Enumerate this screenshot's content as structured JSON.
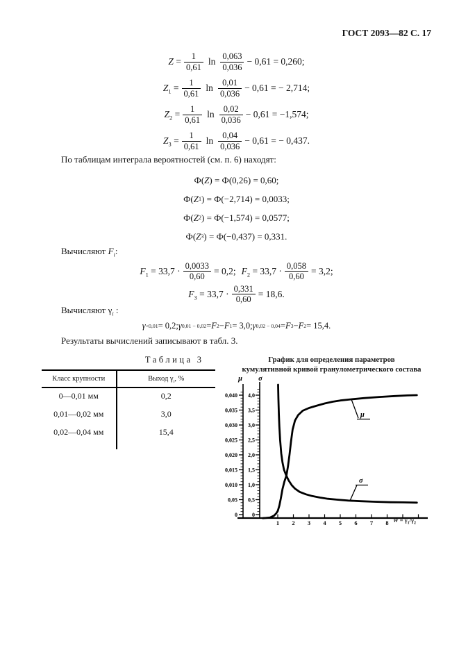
{
  "page": {
    "header": "ГОСТ 2093—82 С. 17"
  },
  "paragraphs": {
    "p1": [
      {
        "t": "По таблицам интеграла вероятностей (см. п. 6) находят:"
      }
    ],
    "p2": [
      {
        "t": "Вычисляют "
      },
      {
        "t": "F",
        "i": 1
      },
      {
        "t": "i",
        "sub": 1,
        "i": 1
      },
      {
        "t": ":"
      }
    ],
    "p3": [
      {
        "t": "Вычисляют γ"
      },
      {
        "t": "i",
        "sub": 1,
        "i": 1
      },
      {
        "t": " :"
      }
    ],
    "p4": [
      {
        "t": "Результаты вычислений записывают в табл. 3."
      }
    ]
  },
  "math": {
    "z": [
      {
        "lhs": [
          {
            "t": "Z",
            "i": 1
          },
          {
            "t": " = "
          }
        ],
        "f1n": "1",
        "f1d": "0,61",
        "op": "ln",
        "f2n": "0,063",
        "f2d": "0,036",
        "tail": [
          {
            "t": " − 0,61 = 0,260;"
          }
        ]
      },
      {
        "lhs": [
          {
            "t": "Z",
            "i": 1
          },
          {
            "t": "1",
            "sub": 1
          },
          {
            "t": " = "
          }
        ],
        "f1n": "1",
        "f1d": "0,61",
        "op": "ln",
        "f2n": "0,01",
        "f2d": "0,036",
        "tail": [
          {
            "t": " − 0,61 = − 2,714;"
          }
        ]
      },
      {
        "lhs": [
          {
            "t": "Z",
            "i": 1
          },
          {
            "t": "2",
            "sub": 1
          },
          {
            "t": " = "
          }
        ],
        "f1n": "1",
        "f1d": "0,61",
        "op": "ln",
        "f2n": "0,02",
        "f2d": "0,036",
        "tail": [
          {
            "t": " − 0,61 = −1,574;"
          }
        ]
      },
      {
        "lhs": [
          {
            "t": "Z",
            "i": 1
          },
          {
            "t": "3",
            "sub": 1
          },
          {
            "t": " = "
          }
        ],
        "f1n": "1",
        "f1d": "0,61",
        "op": "ln",
        "f2n": "0,04",
        "f2d": "0,036",
        "tail": [
          {
            "t": " − 0,61 = − 0,437."
          }
        ]
      }
    ],
    "phi": [
      [
        {
          "t": "Ф("
        },
        {
          "t": "Z",
          "i": 1
        },
        {
          "t": ") = Ф(0,26) = 0,60;"
        }
      ],
      [
        {
          "t": "Ф("
        },
        {
          "t": "Z",
          "i": 1
        },
        {
          "t": "1",
          "sub": 1
        },
        {
          "t": ") = Ф(−2,714) = 0,0033;"
        }
      ],
      [
        {
          "t": "Ф("
        },
        {
          "t": "Z",
          "i": 1
        },
        {
          "t": "2",
          "sub": 1
        },
        {
          "t": ") = Ф(−1,574) = 0,0577;"
        }
      ],
      [
        {
          "t": "Ф("
        },
        {
          "t": "Z",
          "i": 1
        },
        {
          "t": "3",
          "sub": 1
        },
        {
          "t": ") = Ф(−0,437) = 0,331."
        }
      ]
    ],
    "f": [
      {
        "lhs": [
          {
            "t": "F",
            "i": 1
          },
          {
            "t": "1",
            "sub": 1
          },
          {
            "t": " = 33,7 · "
          }
        ],
        "fn": "0,0033",
        "fd": "0,60",
        "tail": [
          {
            "t": " = 0,2; "
          }
        ]
      },
      {
        "lhs": [
          {
            "t": "F",
            "i": 1
          },
          {
            "t": "2",
            "sub": 1
          },
          {
            "t": " = 33,7 · "
          }
        ],
        "fn": "0,058",
        "fd": "0,60",
        "tail": [
          {
            "t": " = 3,2;"
          }
        ]
      },
      {
        "lhs": [
          {
            "t": "F",
            "i": 1
          },
          {
            "t": "3",
            "sub": 1
          },
          {
            "t": " = 33,7 · "
          }
        ],
        "fn": "0,331",
        "fd": "0,60",
        "tail": [
          {
            "t": " = 18,6."
          }
        ]
      }
    ],
    "gamma": [
      {
        "t": "γ",
        "i": 1
      },
      {
        "t": "<0,01",
        "sub": 1
      },
      {
        "t": " = 0,2;  "
      },
      {
        "t": "γ",
        "i": 1
      },
      {
        "t": "0,01 − 0,02",
        "sub": 1
      },
      {
        "t": " = "
      },
      {
        "t": "F",
        "i": 1
      },
      {
        "t": "2",
        "sub": 1
      },
      {
        "t": " − "
      },
      {
        "t": "F",
        "i": 1
      },
      {
        "t": "1",
        "sub": 1
      },
      {
        "t": " = 3,0;  "
      },
      {
        "t": "γ",
        "i": 1
      },
      {
        "t": "0,02 − 0,04",
        "sub": 1
      },
      {
        "t": " = "
      },
      {
        "t": "F",
        "i": 1
      },
      {
        "t": "3",
        "sub": 1
      },
      {
        "t": " − "
      },
      {
        "t": "F",
        "i": 1
      },
      {
        "t": "2",
        "sub": 1
      },
      {
        "t": " = 15,4."
      }
    ]
  },
  "table": {
    "caption_word": "Таблица",
    "caption_num": "3",
    "col1_header": "Класс крупности",
    "col2_header": [
      {
        "t": "Выход γ"
      },
      {
        "t": "i",
        "sub": 1,
        "i": 1
      },
      {
        "t": ", %"
      }
    ],
    "rows": [
      [
        "0—0,01 мм",
        "0,2"
      ],
      [
        "0,01—0,02 мм",
        "3,0"
      ],
      [
        "0,02—0,04 мм",
        "15,4"
      ]
    ]
  },
  "chart": {
    "title_line1": "График для определения параметров",
    "title_line2": "кумулятивной кривой гранулометрического состава",
    "x_title": [
      {
        "t": "W",
        "i": 1
      },
      {
        "t": " = γ"
      },
      {
        "t": "1",
        "sub": 1
      },
      {
        "t": "/γ"
      },
      {
        "t": "2",
        "sub": 1
      }
    ]
  },
  "chart_data": {
    "type": "line",
    "title": "График для определения параметров кумулятивной кривой гранулометрического состава",
    "grid": false,
    "x_axis": {
      "title": "W = γ1/γ2",
      "ticks": [
        1,
        2,
        3,
        4,
        5,
        6,
        7,
        8
      ],
      "range": [
        0,
        10.4
      ]
    },
    "y_axes": [
      {
        "name": "μ",
        "labels": [
          "0",
          "0,05",
          "0,010",
          "0,015",
          "0,020",
          "0,025",
          "0,030",
          "0,035",
          "0,040"
        ],
        "label_step": 0.005,
        "range": [
          0,
          0.0415
        ]
      },
      {
        "name": "σ",
        "labels": [
          "0",
          "0,5",
          "1,0",
          "1,5",
          "2,0",
          "2,5",
          "3,0",
          "3,5",
          "4,0"
        ],
        "label_step": 0.5,
        "range": [
          0,
          4.15
        ]
      }
    ],
    "series": [
      {
        "name": "μ",
        "axis": "μ",
        "points": [
          [
            0.05,
            -0.0012
          ],
          [
            0.5,
            -0.001
          ],
          [
            0.75,
            -0.0004
          ],
          [
            0.9,
            0.0004
          ],
          [
            1.0,
            0.0012
          ],
          [
            1.1,
            0.003
          ],
          [
            1.2,
            0.0055
          ],
          [
            1.3,
            0.0085
          ],
          [
            1.42,
            0.011
          ],
          [
            1.55,
            0.013
          ],
          [
            1.65,
            0.016
          ],
          [
            1.75,
            0.02
          ],
          [
            1.85,
            0.0245
          ],
          [
            1.95,
            0.0285
          ],
          [
            2.1,
            0.0315
          ],
          [
            2.3,
            0.0333
          ],
          [
            2.6,
            0.0348
          ],
          [
            3.0,
            0.0357
          ],
          [
            3.5,
            0.0365
          ],
          [
            4.0,
            0.0372
          ],
          [
            4.5,
            0.0378
          ],
          [
            5.0,
            0.0382
          ],
          [
            5.7,
            0.0386
          ],
          [
            6.5,
            0.039
          ],
          [
            7.5,
            0.0394
          ],
          [
            8.5,
            0.0397
          ],
          [
            9.3,
            0.0399
          ],
          [
            9.9,
            0.04
          ]
        ]
      },
      {
        "name": "σ",
        "axis": "σ",
        "points": [
          [
            1.02,
            4.35
          ],
          [
            1.04,
            3.9
          ],
          [
            1.07,
            3.35
          ],
          [
            1.1,
            2.95
          ],
          [
            1.15,
            2.5
          ],
          [
            1.22,
            2.05
          ],
          [
            1.3,
            1.75
          ],
          [
            1.4,
            1.5
          ],
          [
            1.55,
            1.3
          ],
          [
            1.7,
            1.14
          ],
          [
            1.9,
            0.98
          ],
          [
            2.1,
            0.87
          ],
          [
            2.4,
            0.76
          ],
          [
            2.8,
            0.68
          ],
          [
            3.2,
            0.62
          ],
          [
            3.7,
            0.57
          ],
          [
            4.2,
            0.53
          ],
          [
            4.8,
            0.5
          ],
          [
            5.5,
            0.47
          ],
          [
            6.3,
            0.45
          ],
          [
            7.2,
            0.43
          ],
          [
            8.2,
            0.415
          ],
          [
            9.0,
            0.41
          ],
          [
            9.9,
            0.4
          ]
        ]
      }
    ]
  }
}
